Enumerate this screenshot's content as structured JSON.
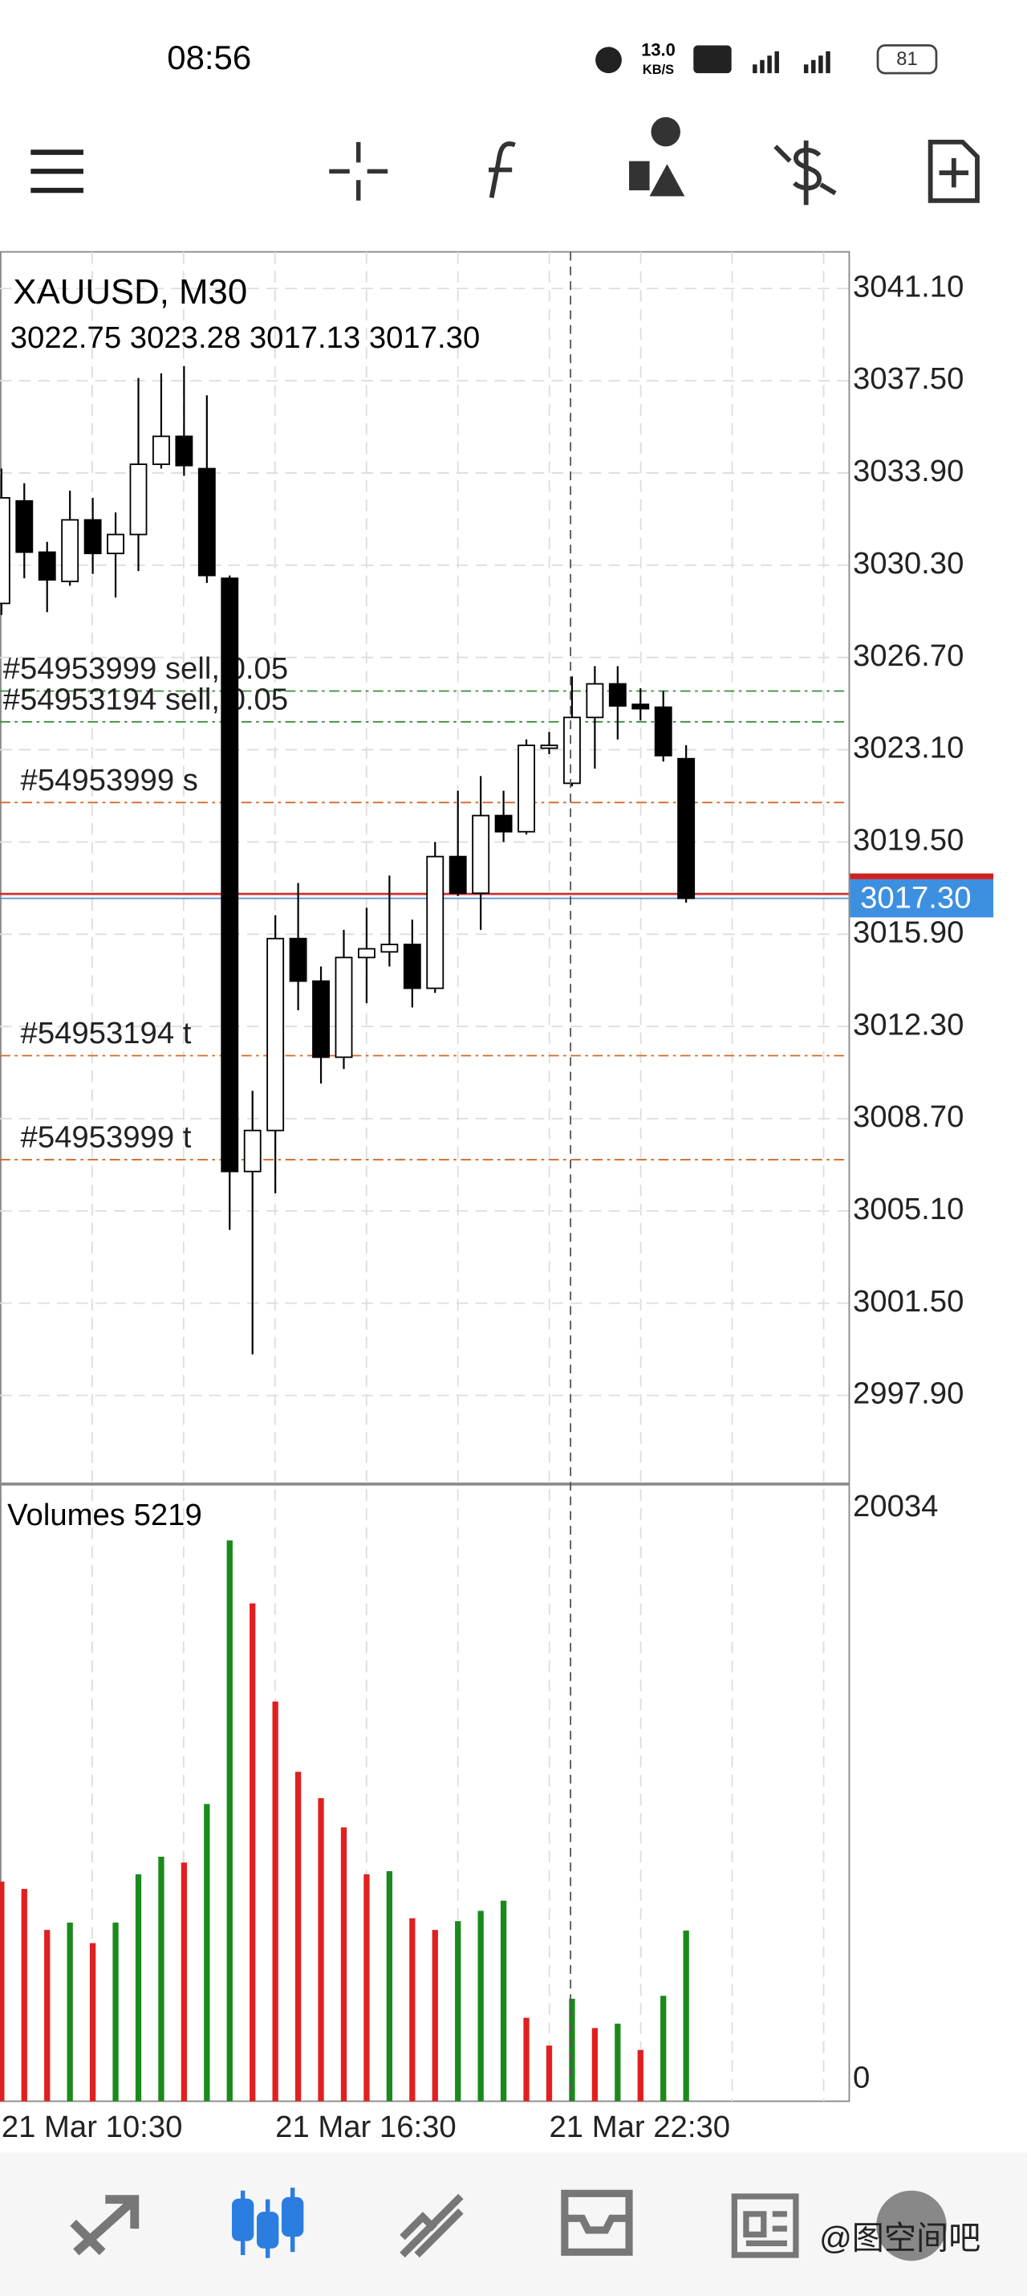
{
  "status_bar": {
    "time": "08:56",
    "net_speed": "13.0",
    "net_unit": "KB/S",
    "battery": "81"
  },
  "chart": {
    "type": "candlestick",
    "symbol": "XAUUSD, M30",
    "ohlc_labels": [
      "3022.75",
      "3023.28",
      "3017.13",
      "3017.30"
    ],
    "categories": [
      "21 Mar 10:30",
      null,
      null,
      null,
      null,
      null,
      null,
      null,
      null,
      null,
      null,
      null,
      "21 Mar 16:30",
      null,
      null,
      null,
      null,
      null,
      null,
      null,
      null,
      null,
      null,
      null,
      "21 Mar 22:30",
      null,
      null,
      null,
      null,
      null,
      null
    ],
    "open": [
      3028.81,
      3032.81,
      3030.81,
      3029.67,
      3032.07,
      3030.76,
      3031.5,
      3034.24,
      3035.33,
      3034.07,
      3029.79,
      3006.64,
      3008.24,
      3015.73,
      3014.07,
      3011.1,
      3014.99,
      3015.21,
      3015.5,
      3013.79,
      3018.93,
      3017.5,
      3020.53,
      3019.9,
      3023.16,
      3021.79,
      3024.36,
      3025.67,
      3024.87,
      3024.76,
      3022.75
    ],
    "high": [
      3034.07,
      3033.5,
      3031.21,
      3033.21,
      3032.93,
      3032.36,
      3037.61,
      3037.79,
      3038.07,
      3036.93,
      3029.9,
      3009.79,
      3016.64,
      3017.9,
      3014.64,
      3016.07,
      3016.93,
      3018.19,
      3016.47,
      3019.5,
      3021.5,
      3022.07,
      3021.5,
      3023.5,
      3023.79,
      3025.96,
      3026.36,
      3026.36,
      3025.5,
      3025.39,
      3023.28
    ],
    "low": [
      3028.36,
      3029.79,
      3028.47,
      3029.5,
      3029.96,
      3029.04,
      3030.07,
      3034.07,
      3033.79,
      3029.61,
      3004.36,
      2999.5,
      3005.79,
      3012.93,
      3010.07,
      3010.64,
      3013.21,
      3014.64,
      3013.04,
      3013.61,
      3017.39,
      3016.07,
      3019.5,
      3019.79,
      3022.93,
      3021.67,
      3022.36,
      3023.5,
      3024.24,
      3022.64,
      3017.13
    ],
    "close": [
      3032.93,
      3030.81,
      3029.73,
      3032.07,
      3030.76,
      3031.5,
      3034.24,
      3035.33,
      3034.19,
      3029.9,
      3006.64,
      3008.24,
      3015.73,
      3014.07,
      3011.1,
      3014.99,
      3015.33,
      3015.5,
      3013.79,
      3018.93,
      3017.5,
      3020.53,
      3019.9,
      3023.27,
      3023.27,
      3024.36,
      3025.67,
      3024.81,
      3024.7,
      3022.87,
      3017.3
    ],
    "up_color": "#ffffff",
    "down_color": "#000000",
    "ylim": [
      2994.47,
      3042.53
    ],
    "yticks": [
      {
        "value": 3041.1,
        "label": "3041.10"
      },
      {
        "value": 3037.5,
        "label": "3037.50"
      },
      {
        "value": 3033.9,
        "label": "3033.90"
      },
      {
        "value": 3030.3,
        "label": "3030.30"
      },
      {
        "value": 3026.7,
        "label": "3026.70"
      },
      {
        "value": 3023.1,
        "label": "3023.10"
      },
      {
        "value": 3019.5,
        "label": "3019.50"
      },
      {
        "value": 3015.9,
        "label": "3015.90"
      },
      {
        "value": 3012.3,
        "label": "3012.30"
      },
      {
        "value": 3008.7,
        "label": "3008.70"
      },
      {
        "value": 3005.1,
        "label": "3005.10"
      },
      {
        "value": 3001.5,
        "label": "3001.50"
      },
      {
        "value": 2997.9,
        "label": "2997.90"
      }
    ],
    "grid": true,
    "current_price": {
      "value": 3017.3,
      "label": "3017.30"
    },
    "orders": [
      {
        "label": "#54953999 sell, 0.05",
        "price": 3025.39,
        "color": "#3c8c3c"
      },
      {
        "label": "#54953194 sell, 0.05",
        "price": 3024.19,
        "color": "#3c8c3c"
      },
      {
        "label": "#54953999 s",
        "price": 3021.04,
        "color": "#d2692a"
      },
      {
        "label": "#54953194 t",
        "price": 3011.16,
        "color": "#d2692a"
      },
      {
        "label": "#54953999 t",
        "price": 3007.1,
        "color": "#d2692a"
      }
    ],
    "volumes": {
      "title": "Volumes",
      "values": [
        6935,
        6678,
        5240,
        5497,
        4777,
        5497,
        7192,
        7808,
        7603,
        9658,
        18904,
        16695,
        13253,
        10788,
        9863,
        8836,
        7192,
        7300,
        5651,
        5240,
        5548,
        5908,
        6267,
        2158,
        1182,
        2825,
        1798,
        1952,
        1027,
        2928,
        5219
      ],
      "colors": [
        "#e02020",
        "#e02020",
        "#e02020",
        "#1a8a1a",
        "#e02020",
        "#1a8a1a",
        "#1a8a1a",
        "#1a8a1a",
        "#e02020",
        "#1a8a1a",
        "#1a8a1a",
        "#e02020",
        "#e02020",
        "#e02020",
        "#e02020",
        "#e02020",
        "#e02020",
        "#1a8a1a",
        "#e02020",
        "#e02020",
        "#1a8a1a",
        "#1a8a1a",
        "#1a8a1a",
        "#e02020",
        "#e02020",
        "#1a8a1a",
        "#e02020",
        "#1a8a1a",
        "#e02020",
        "#1a8a1a",
        "#1a8a1a"
      ],
      "ylim": [
        0,
        20034
      ],
      "yticks": [
        0,
        20034
      ]
    }
  },
  "watermark": "@图空间吧"
}
